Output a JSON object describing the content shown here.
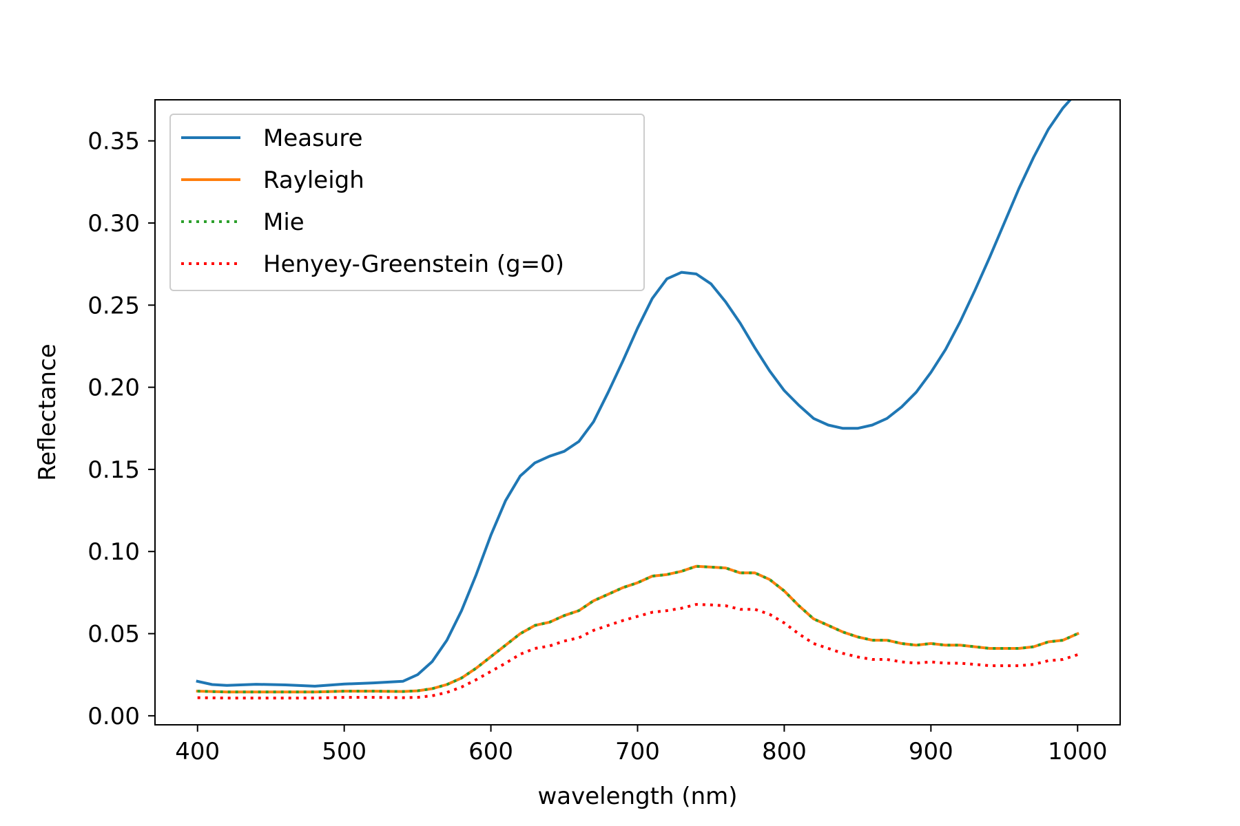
{
  "chart_data": {
    "type": "line",
    "title": "",
    "xlabel": "wavelength (nm)",
    "ylabel": "Reflectance",
    "xlim": [
      371,
      1029
    ],
    "ylim": [
      -0.0055,
      0.375
    ],
    "xticks": [
      400,
      500,
      600,
      700,
      800,
      900,
      1000
    ],
    "xtick_labels": [
      "400",
      "500",
      "600",
      "700",
      "800",
      "900",
      "1000"
    ],
    "yticks": [
      0.0,
      0.05,
      0.1,
      0.15,
      0.2,
      0.25,
      0.3,
      0.35
    ],
    "ytick_labels": [
      "0.00",
      "0.05",
      "0.10",
      "0.15",
      "0.20",
      "0.25",
      "0.30",
      "0.35"
    ],
    "grid": false,
    "legend_position": "upper-left",
    "series": [
      {
        "name": "Measure",
        "color": "#1f77b4",
        "style": "solid",
        "x": [
          400,
          410,
          420,
          440,
          460,
          480,
          500,
          520,
          540,
          550,
          560,
          570,
          580,
          590,
          600,
          610,
          620,
          630,
          640,
          650,
          660,
          670,
          680,
          690,
          700,
          710,
          720,
          730,
          740,
          750,
          760,
          770,
          780,
          790,
          800,
          810,
          820,
          830,
          840,
          850,
          860,
          870,
          880,
          890,
          900,
          910,
          920,
          930,
          940,
          950,
          960,
          970,
          980,
          990,
          1000
        ],
        "y": [
          0.021,
          0.019,
          0.0185,
          0.0192,
          0.0188,
          0.018,
          0.0193,
          0.02,
          0.021,
          0.025,
          0.033,
          0.046,
          0.064,
          0.086,
          0.11,
          0.131,
          0.146,
          0.154,
          0.158,
          0.161,
          0.167,
          0.179,
          0.197,
          0.216,
          0.236,
          0.254,
          0.266,
          0.27,
          0.269,
          0.263,
          0.252,
          0.239,
          0.224,
          0.21,
          0.198,
          0.189,
          0.181,
          0.177,
          0.175,
          0.175,
          0.177,
          0.181,
          0.188,
          0.197,
          0.209,
          0.223,
          0.24,
          0.259,
          0.279,
          0.3,
          0.321,
          0.34,
          0.357,
          0.37,
          0.38
        ]
      },
      {
        "name": "Rayleigh",
        "color": "#ff7f0e",
        "style": "solid",
        "x": [
          400,
          420,
          440,
          460,
          480,
          500,
          520,
          540,
          550,
          560,
          570,
          580,
          590,
          600,
          610,
          620,
          630,
          640,
          650,
          660,
          670,
          680,
          690,
          700,
          710,
          720,
          730,
          740,
          750,
          760,
          770,
          780,
          790,
          800,
          810,
          820,
          830,
          840,
          850,
          860,
          870,
          880,
          890,
          900,
          910,
          920,
          930,
          940,
          950,
          960,
          970,
          980,
          990,
          1000
        ],
        "y": [
          0.015,
          0.0145,
          0.0145,
          0.0145,
          0.0145,
          0.015,
          0.015,
          0.0148,
          0.0152,
          0.0165,
          0.019,
          0.023,
          0.029,
          0.036,
          0.043,
          0.05,
          0.055,
          0.057,
          0.061,
          0.064,
          0.07,
          0.074,
          0.078,
          0.081,
          0.085,
          0.086,
          0.088,
          0.091,
          0.0905,
          0.09,
          0.087,
          0.087,
          0.083,
          0.076,
          0.067,
          0.059,
          0.055,
          0.051,
          0.048,
          0.046,
          0.046,
          0.044,
          0.043,
          0.044,
          0.043,
          0.043,
          0.042,
          0.041,
          0.041,
          0.041,
          0.042,
          0.045,
          0.046,
          0.05
        ]
      },
      {
        "name": "Mie",
        "color": "#2ca02c",
        "style": "dotted",
        "x": [
          400,
          420,
          440,
          460,
          480,
          500,
          520,
          540,
          550,
          560,
          570,
          580,
          590,
          600,
          610,
          620,
          630,
          640,
          650,
          660,
          670,
          680,
          690,
          700,
          710,
          720,
          730,
          740,
          750,
          760,
          770,
          780,
          790,
          800,
          810,
          820,
          830,
          840,
          850,
          860,
          870,
          880,
          890,
          900,
          910,
          920,
          930,
          940,
          950,
          960,
          970,
          980,
          990,
          1000
        ],
        "y": [
          0.015,
          0.0145,
          0.0145,
          0.0145,
          0.0145,
          0.015,
          0.015,
          0.0148,
          0.0152,
          0.0165,
          0.019,
          0.023,
          0.029,
          0.036,
          0.043,
          0.05,
          0.055,
          0.057,
          0.061,
          0.064,
          0.07,
          0.074,
          0.078,
          0.081,
          0.085,
          0.086,
          0.088,
          0.091,
          0.0905,
          0.09,
          0.087,
          0.087,
          0.083,
          0.076,
          0.067,
          0.059,
          0.055,
          0.051,
          0.048,
          0.046,
          0.046,
          0.044,
          0.043,
          0.044,
          0.043,
          0.043,
          0.042,
          0.041,
          0.041,
          0.041,
          0.042,
          0.045,
          0.046,
          0.05
        ]
      },
      {
        "name": "Henyey-Greenstein (g=0)",
        "color": "#ff0000",
        "style": "dotted",
        "x": [
          400,
          420,
          440,
          460,
          480,
          500,
          520,
          540,
          550,
          560,
          570,
          580,
          590,
          600,
          610,
          620,
          630,
          640,
          650,
          660,
          670,
          680,
          690,
          700,
          710,
          720,
          730,
          740,
          750,
          760,
          770,
          780,
          790,
          800,
          810,
          820,
          830,
          840,
          850,
          860,
          870,
          880,
          890,
          900,
          910,
          920,
          930,
          940,
          950,
          960,
          970,
          980,
          990,
          1000
        ],
        "y": [
          0.011,
          0.0108,
          0.0108,
          0.0108,
          0.0108,
          0.0112,
          0.0112,
          0.011,
          0.0112,
          0.0122,
          0.0142,
          0.0175,
          0.022,
          0.027,
          0.032,
          0.0375,
          0.041,
          0.0425,
          0.0455,
          0.0475,
          0.052,
          0.055,
          0.058,
          0.0605,
          0.063,
          0.064,
          0.0655,
          0.0678,
          0.0675,
          0.067,
          0.0648,
          0.0648,
          0.0618,
          0.0565,
          0.0498,
          0.044,
          0.041,
          0.038,
          0.0358,
          0.0343,
          0.0343,
          0.0328,
          0.032,
          0.0328,
          0.032,
          0.032,
          0.0313,
          0.0305,
          0.0305,
          0.0305,
          0.0313,
          0.0335,
          0.0343,
          0.0372
        ]
      }
    ]
  }
}
